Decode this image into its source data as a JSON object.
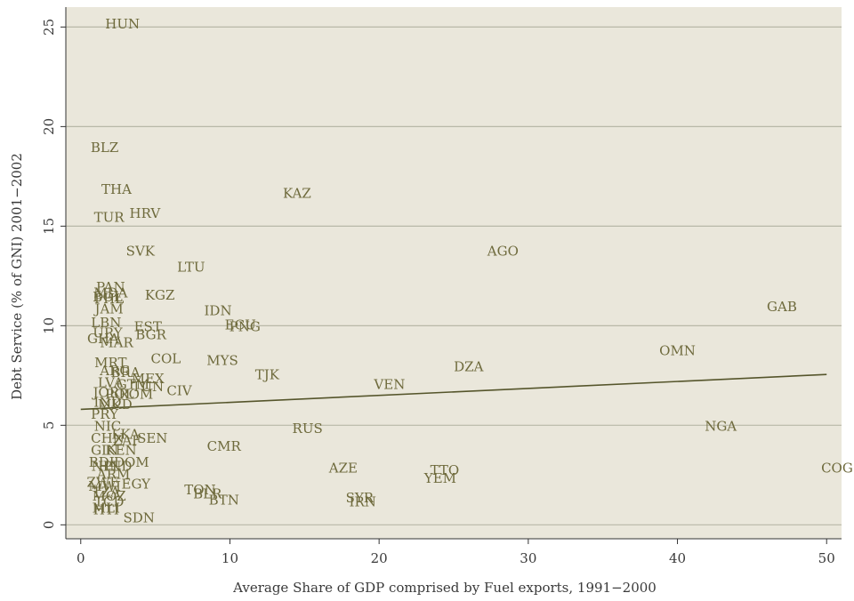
{
  "chart_data": {
    "type": "scatter",
    "xlabel": "Average Share of GDP comprised by Fuel exports, 1991−2000",
    "ylabel": "Debt Service (% of GNI) 2001−2002",
    "xlim": [
      -1,
      51
    ],
    "ylim": [
      -0.7,
      26
    ],
    "xticks": [
      "0",
      "10",
      "20",
      "30",
      "40",
      "50"
    ],
    "yticks": [
      "0",
      "5",
      "10",
      "15",
      "20",
      "25"
    ],
    "grid": "horizontal",
    "colors": {
      "plot_bg": "#eae7db",
      "grid": "#b8b8a8",
      "marker": "#6e6a3c",
      "line": "#55552b",
      "axis": "#333333"
    },
    "fit_line": {
      "x": [
        0,
        50
      ],
      "y": [
        5.8,
        7.55
      ]
    },
    "points": [
      {
        "label": "HUN",
        "x": 2.8,
        "y": 25.1
      },
      {
        "label": "BLZ",
        "x": 1.6,
        "y": 18.9
      },
      {
        "label": "THA",
        "x": 2.4,
        "y": 16.8
      },
      {
        "label": "KAZ",
        "x": 14.5,
        "y": 16.6
      },
      {
        "label": "TUR",
        "x": 1.9,
        "y": 15.4
      },
      {
        "label": "HRV",
        "x": 4.3,
        "y": 15.6
      },
      {
        "label": "SVK",
        "x": 4.0,
        "y": 13.7
      },
      {
        "label": "AGO",
        "x": 28.3,
        "y": 13.7
      },
      {
        "label": "LTU",
        "x": 7.4,
        "y": 12.9
      },
      {
        "label": "PAN",
        "x": 2.0,
        "y": 11.9
      },
      {
        "label": "MDA",
        "x": 2.0,
        "y": 11.6
      },
      {
        "label": "BOL",
        "x": 1.8,
        "y": 11.4
      },
      {
        "label": "PHL",
        "x": 1.9,
        "y": 11.3
      },
      {
        "label": "KGZ",
        "x": 5.3,
        "y": 11.5
      },
      {
        "label": "JAM",
        "x": 1.9,
        "y": 10.8
      },
      {
        "label": "IDN",
        "x": 9.2,
        "y": 10.7
      },
      {
        "label": "GAB",
        "x": 47.0,
        "y": 10.9
      },
      {
        "label": "LBN",
        "x": 1.7,
        "y": 10.1
      },
      {
        "label": "EST",
        "x": 4.5,
        "y": 9.9
      },
      {
        "label": "ECU",
        "x": 10.7,
        "y": 10.0
      },
      {
        "label": "PNG",
        "x": 11.0,
        "y": 9.9
      },
      {
        "label": "URY",
        "x": 1.8,
        "y": 9.6
      },
      {
        "label": "BGR",
        "x": 4.7,
        "y": 9.5
      },
      {
        "label": "GHA",
        "x": 1.5,
        "y": 9.3
      },
      {
        "label": "MAR",
        "x": 2.4,
        "y": 9.1
      },
      {
        "label": "OMN",
        "x": 40.0,
        "y": 8.7
      },
      {
        "label": "COL",
        "x": 5.7,
        "y": 8.3
      },
      {
        "label": "MYS",
        "x": 9.5,
        "y": 8.2
      },
      {
        "label": "MRT",
        "x": 2.0,
        "y": 8.1
      },
      {
        "label": "DZA",
        "x": 26.0,
        "y": 7.9
      },
      {
        "label": "ARG",
        "x": 2.3,
        "y": 7.7
      },
      {
        "label": "BRA",
        "x": 3.0,
        "y": 7.6
      },
      {
        "label": "TJK",
        "x": 12.5,
        "y": 7.5
      },
      {
        "label": "MEX",
        "x": 4.5,
        "y": 7.3
      },
      {
        "label": "LVA",
        "x": 2.0,
        "y": 7.1
      },
      {
        "label": "GTM",
        "x": 3.5,
        "y": 7.0
      },
      {
        "label": "TUN",
        "x": 4.5,
        "y": 6.9
      },
      {
        "label": "VEN",
        "x": 20.7,
        "y": 7.0
      },
      {
        "label": "CIV",
        "x": 6.6,
        "y": 6.7
      },
      {
        "label": "JOR",
        "x": 1.7,
        "y": 6.6
      },
      {
        "label": "POL",
        "x": 2.6,
        "y": 6.5
      },
      {
        "label": "ROM",
        "x": 3.7,
        "y": 6.5
      },
      {
        "label": "IND",
        "x": 1.8,
        "y": 6.1
      },
      {
        "label": "MKD",
        "x": 2.3,
        "y": 6.0
      },
      {
        "label": "PRY",
        "x": 1.6,
        "y": 5.5
      },
      {
        "label": "NIC",
        "x": 1.8,
        "y": 4.9
      },
      {
        "label": "NGA",
        "x": 42.9,
        "y": 4.9
      },
      {
        "label": "RUS",
        "x": 15.2,
        "y": 4.8
      },
      {
        "label": "LKA",
        "x": 3.0,
        "y": 4.5
      },
      {
        "label": "CHN",
        "x": 1.8,
        "y": 4.3
      },
      {
        "label": "ZAF",
        "x": 3.1,
        "y": 4.2
      },
      {
        "label": "SEN",
        "x": 4.8,
        "y": 4.3
      },
      {
        "label": "CMR",
        "x": 9.6,
        "y": 3.9
      },
      {
        "label": "GIN",
        "x": 1.6,
        "y": 3.7
      },
      {
        "label": "KEN",
        "x": 2.7,
        "y": 3.7
      },
      {
        "label": "BDI",
        "x": 1.4,
        "y": 3.1
      },
      {
        "label": "DOM",
        "x": 3.4,
        "y": 3.1
      },
      {
        "label": "NPL",
        "x": 1.7,
        "y": 2.9
      },
      {
        "label": "HND",
        "x": 2.3,
        "y": 2.9
      },
      {
        "label": "AZE",
        "x": 17.6,
        "y": 2.8
      },
      {
        "label": "TTO",
        "x": 24.4,
        "y": 2.7
      },
      {
        "label": "ARM",
        "x": 2.2,
        "y": 2.5
      },
      {
        "label": "YEM",
        "x": 24.1,
        "y": 2.3
      },
      {
        "label": "ZWE",
        "x": 1.5,
        "y": 2.1
      },
      {
        "label": "EGY",
        "x": 3.7,
        "y": 2.0
      },
      {
        "label": "MWI",
        "x": 1.6,
        "y": 1.9
      },
      {
        "label": "TON",
        "x": 8.0,
        "y": 1.7
      },
      {
        "label": "BLR",
        "x": 8.5,
        "y": 1.5
      },
      {
        "label": "TZA",
        "x": 1.7,
        "y": 1.6
      },
      {
        "label": "MOZ",
        "x": 1.9,
        "y": 1.4
      },
      {
        "label": "BTN",
        "x": 9.6,
        "y": 1.2
      },
      {
        "label": "SYR",
        "x": 18.7,
        "y": 1.3
      },
      {
        "label": "IRN",
        "x": 18.9,
        "y": 1.1
      },
      {
        "label": "TCD",
        "x": 1.9,
        "y": 1.1
      },
      {
        "label": "MLI",
        "x": 1.7,
        "y": 0.8
      },
      {
        "label": "HTI",
        "x": 1.7,
        "y": 0.7
      },
      {
        "label": "SDN",
        "x": 3.9,
        "y": 0.3
      },
      {
        "label": "COG",
        "x": 50.7,
        "y": 2.8
      }
    ]
  }
}
